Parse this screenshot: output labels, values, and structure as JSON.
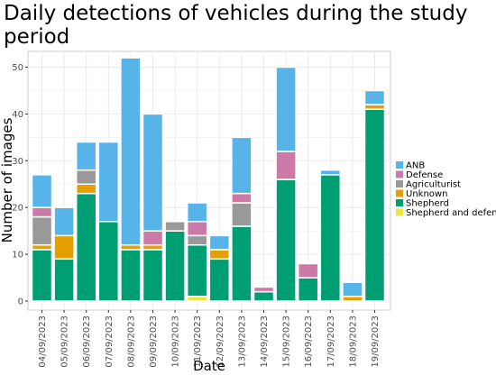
{
  "chart_data": {
    "type": "bar",
    "stacked": true,
    "title": "Daily detections of vehicles during the study period",
    "xlabel": "Date",
    "ylabel": "Number of images",
    "ylim": [
      0,
      55
    ],
    "yticks": [
      0,
      10,
      20,
      30,
      40,
      50
    ],
    "grid": true,
    "legend_position": "right",
    "categories": [
      "04/09/2023",
      "05/09/2023",
      "06/09/2023",
      "07/09/2023",
      "08/09/2023",
      "09/09/2023",
      "10/09/2023",
      "11/09/2023",
      "12/09/2023",
      "13/09/2023",
      "14/09/2023",
      "15/09/2023",
      "16/09/2023",
      "17/09/2023",
      "18/09/2023",
      "19/09/2023"
    ],
    "series": [
      {
        "name": "Shepherd and defense",
        "color": "#F0E442",
        "values": [
          0,
          0,
          0,
          0,
          0,
          0,
          0,
          1,
          0,
          0,
          0,
          0,
          0,
          0,
          0,
          0
        ]
      },
      {
        "name": "Shepherd",
        "color": "#009E73",
        "values": [
          11,
          9,
          23,
          17,
          11,
          11,
          15,
          11,
          9,
          16,
          2,
          26,
          5,
          27,
          0,
          41
        ]
      },
      {
        "name": "Unknown",
        "color": "#E69F00",
        "values": [
          1,
          5,
          2,
          0,
          1,
          1,
          0,
          0,
          2,
          0,
          0,
          0,
          0,
          0,
          1,
          1
        ]
      },
      {
        "name": "Agriculturist",
        "color": "#999999",
        "values": [
          6,
          0,
          3,
          0,
          0,
          0,
          2,
          2,
          0,
          5,
          0,
          0,
          0,
          0,
          0,
          0
        ]
      },
      {
        "name": "Defense",
        "color": "#CC79A7",
        "values": [
          2,
          0,
          0,
          0,
          0,
          3,
          0,
          3,
          0,
          2,
          1,
          6,
          3,
          0,
          0,
          0
        ]
      },
      {
        "name": "ANB",
        "color": "#56B4E9",
        "values": [
          7,
          6,
          6,
          17,
          40,
          25,
          0,
          4,
          3,
          12,
          0,
          18,
          0,
          1,
          3,
          3
        ]
      }
    ],
    "legend_order": [
      "ANB",
      "Defense",
      "Agriculturist",
      "Unknown",
      "Shepherd",
      "Shepherd and defense"
    ]
  }
}
